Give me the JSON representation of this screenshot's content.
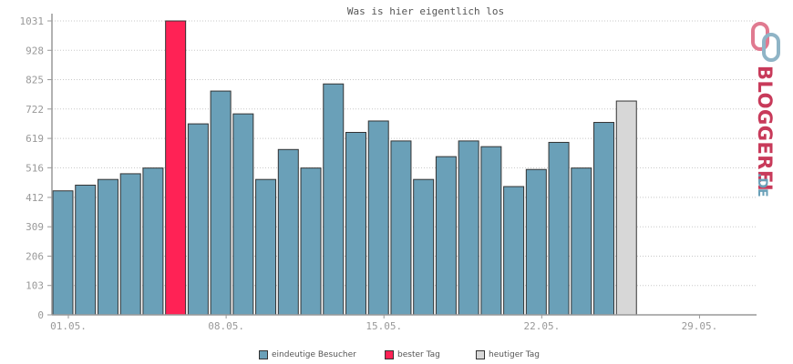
{
  "chart_data": {
    "type": "bar",
    "title": "Was is hier eigentlich los",
    "ylim": [
      0,
      1031
    ],
    "y_ticks": [
      "0",
      "103",
      "206",
      "309",
      "412",
      "516",
      "619",
      "722",
      "825",
      "928",
      "1031"
    ],
    "x_ticks": [
      {
        "label": "01.05.",
        "day": 1
      },
      {
        "label": "08.05.",
        "day": 8
      },
      {
        "label": "15.05.",
        "day": 15
      },
      {
        "label": "22.05.",
        "day": 22
      },
      {
        "label": "29.05.",
        "day": 29
      }
    ],
    "days": 31,
    "grid": true,
    "legend_position": "bottom",
    "series": [
      {
        "name": "eindeutige Besucher",
        "color": "#6aa0b8",
        "points": [
          {
            "day": 1,
            "value": 435
          },
          {
            "day": 2,
            "value": 455
          },
          {
            "day": 3,
            "value": 475
          },
          {
            "day": 4,
            "value": 495
          },
          {
            "day": 5,
            "value": 515
          },
          {
            "day": 7,
            "value": 670
          },
          {
            "day": 8,
            "value": 785
          },
          {
            "day": 9,
            "value": 705
          },
          {
            "day": 10,
            "value": 475
          },
          {
            "day": 11,
            "value": 580
          },
          {
            "day": 12,
            "value": 515
          },
          {
            "day": 13,
            "value": 810
          },
          {
            "day": 14,
            "value": 640
          },
          {
            "day": 15,
            "value": 680
          },
          {
            "day": 16,
            "value": 610
          },
          {
            "day": 17,
            "value": 475
          },
          {
            "day": 18,
            "value": 555
          },
          {
            "day": 19,
            "value": 610
          },
          {
            "day": 20,
            "value": 590
          },
          {
            "day": 21,
            "value": 450
          },
          {
            "day": 22,
            "value": 510
          },
          {
            "day": 23,
            "value": 605
          },
          {
            "day": 24,
            "value": 515
          },
          {
            "day": 25,
            "value": 675
          }
        ]
      },
      {
        "name": "bester Tag",
        "color": "#ff2255",
        "points": [
          {
            "day": 6,
            "value": 1031
          }
        ]
      },
      {
        "name": "heutiger Tag",
        "color": "#d7d7d7",
        "points": [
          {
            "day": 26,
            "value": 750
          }
        ]
      }
    ]
  },
  "legend": [
    {
      "label": "eindeutige Besucher",
      "color": "#6aa0b8"
    },
    {
      "label": "bester Tag",
      "color": "#ff2255"
    },
    {
      "label": "heutiger Tag",
      "color": "#d7d7d7"
    }
  ],
  "logo": {
    "text": "BLOGGEREI",
    "suffix": ".DE",
    "color_main": "#c83a5a",
    "color_suffix": "#6aa0b8"
  }
}
